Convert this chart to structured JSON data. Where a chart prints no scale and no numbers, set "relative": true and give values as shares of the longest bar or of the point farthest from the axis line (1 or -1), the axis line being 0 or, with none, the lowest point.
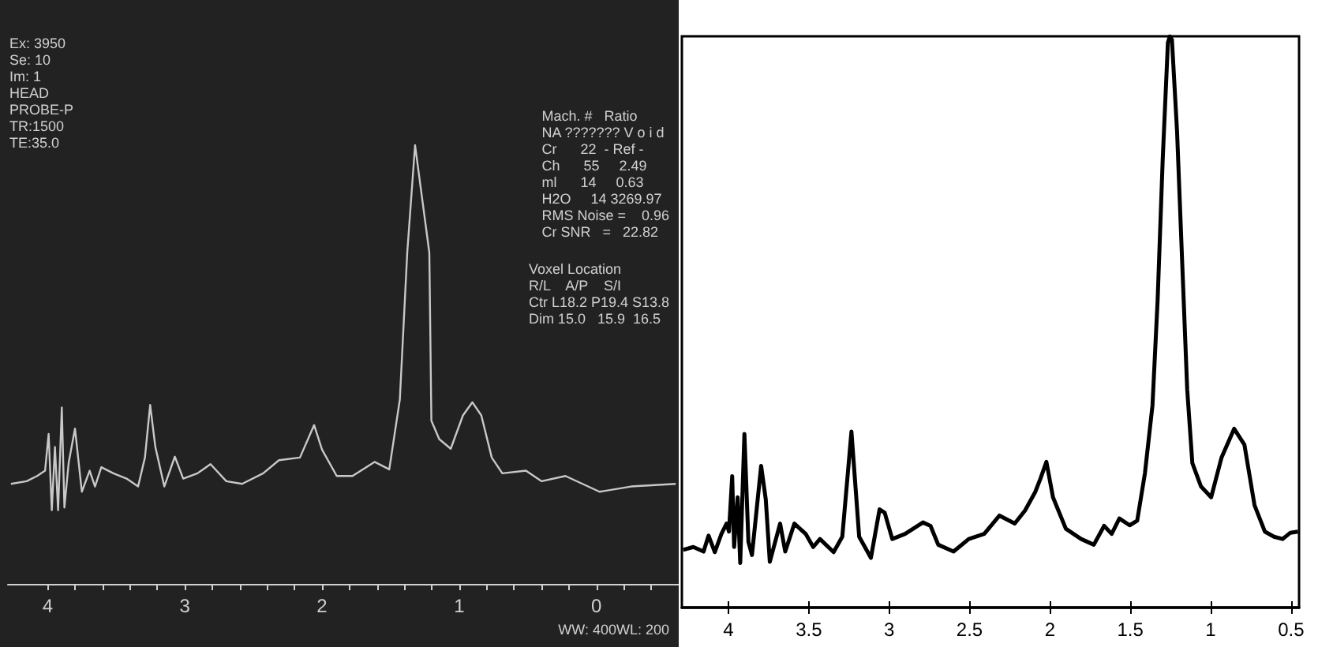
{
  "chart_data": [
    {
      "type": "line",
      "relative": true,
      "xlim": [
        4.29,
        -0.6
      ],
      "xticks": [
        4,
        {
          "value": 3.8,
          "label": null
        },
        {
          "value": 3.6,
          "label": null
        },
        {
          "value": 3.4,
          "label": null
        },
        {
          "value": 3.2,
          "label": null
        },
        3,
        {
          "value": 2.8,
          "label": null
        },
        {
          "value": 2.6,
          "label": null
        },
        {
          "value": 2.4,
          "label": null
        },
        {
          "value": 2.2,
          "label": null
        },
        2,
        {
          "value": 1.8,
          "label": null
        },
        {
          "value": 1.6,
          "label": null
        },
        {
          "value": 1.4,
          "label": null
        },
        {
          "value": 1.2,
          "label": null
        },
        1,
        {
          "value": 0.8,
          "label": null
        },
        {
          "value": 0.6,
          "label": null
        },
        {
          "value": 0.4,
          "label": null
        },
        {
          "value": 0.2,
          "label": null
        },
        0,
        {
          "value": -0.2,
          "label": null
        },
        {
          "value": -0.4,
          "label": null
        }
      ],
      "annotations": [
        "Ex: 3950\nSe: 10\nIm: 1\nHEAD\nPROBE-P\nTR:1500\nTE:35.0",
        "Mach. #   Ratio\nNA ??????? V o i d\nCr      22  - Ref -\nCh      55     2.49\nml      14     0.63\nH2O     14 3269.97\nRMS Noise =    0.96\nCr SNR   =   22.82",
        "Voxel Location\nR/L    A/P    S/I\nCtr L18.2 P19.4 S13.8\nDim 15.0   15.9  16.5",
        "WW: 400WL: 200"
      ],
      "series": [
        {
          "color": "#c8c8c8",
          "x": [
            4.268,
            4.153,
            4.077,
            4.019,
            3.993,
            3.97,
            3.947,
            3.924,
            3.897,
            3.878,
            3.847,
            3.801,
            3.751,
            3.694,
            3.655,
            3.609,
            3.521,
            3.425,
            3.341,
            3.291,
            3.253,
            3.215,
            3.15,
            3.073,
            3.012,
            2.908,
            2.813,
            2.698,
            2.583,
            2.429,
            2.314,
            2.161,
            2.058,
            2.0,
            1.893,
            1.778,
            1.617,
            1.51,
            1.433,
            1.379,
            1.322,
            1.218,
            1.203,
            1.146,
            1.062,
            0.973,
            0.904,
            0.839,
            0.763,
            0.686,
            0.514,
            0.399,
            0.226,
            -0.023,
            -0.253,
            -0.578
          ],
          "values": [
            0.228,
            0.234,
            0.246,
            0.258,
            0.342,
            0.168,
            0.312,
            0.168,
            0.402,
            0.174,
            0.276,
            0.354,
            0.21,
            0.258,
            0.222,
            0.266,
            0.252,
            0.24,
            0.222,
            0.288,
            0.408,
            0.312,
            0.222,
            0.29,
            0.24,
            0.252,
            0.273,
            0.234,
            0.228,
            0.252,
            0.282,
            0.288,
            0.362,
            0.306,
            0.246,
            0.246,
            0.278,
            0.261,
            0.42,
            0.755,
            1.0,
            0.755,
            0.372,
            0.33,
            0.308,
            0.384,
            0.414,
            0.384,
            0.288,
            0.252,
            0.258,
            0.234,
            0.246,
            0.21,
            0.222,
            0.228
          ]
        }
      ]
    },
    {
      "type": "line",
      "relative": true,
      "xlim": [
        4.29,
        0.45
      ],
      "xticks": [
        4,
        3.5,
        3,
        2.5,
        2,
        1.5,
        1,
        0.5
      ],
      "series": [
        {
          "color": "#000000",
          "x": [
            4.282,
            4.219,
            4.155,
            4.124,
            4.085,
            4.044,
            4.012,
            3.997,
            3.977,
            3.965,
            3.943,
            3.927,
            3.901,
            3.876,
            3.854,
            3.797,
            3.768,
            3.743,
            3.679,
            3.647,
            3.59,
            3.52,
            3.473,
            3.431,
            3.346,
            3.292,
            3.235,
            3.187,
            3.114,
            3.06,
            3.028,
            2.981,
            2.901,
            2.79,
            2.743,
            2.695,
            2.6,
            2.505,
            2.409,
            2.314,
            2.219,
            2.155,
            2.092,
            2.06,
            2.022,
            1.981,
            1.901,
            1.806,
            1.727,
            1.663,
            1.616,
            1.568,
            1.504,
            1.457,
            1.409,
            1.362,
            1.33,
            1.298,
            1.266,
            1.254,
            1.241,
            1.209,
            1.177,
            1.146,
            1.114,
            1.06,
            0.997,
            0.933,
            0.854,
            0.79,
            0.727,
            0.663,
            0.606,
            0.552,
            0.504,
            0.457
          ],
          "values": [
            0.101,
            0.106,
            0.098,
            0.126,
            0.097,
            0.129,
            0.147,
            0.133,
            0.23,
            0.106,
            0.193,
            0.078,
            0.304,
            0.115,
            0.092,
            0.248,
            0.189,
            0.08,
            0.147,
            0.098,
            0.147,
            0.129,
            0.106,
            0.12,
            0.097,
            0.124,
            0.308,
            0.124,
            0.087,
            0.172,
            0.166,
            0.12,
            0.129,
            0.149,
            0.143,
            0.11,
            0.098,
            0.12,
            0.129,
            0.161,
            0.147,
            0.17,
            0.202,
            0.225,
            0.255,
            0.193,
            0.138,
            0.12,
            0.11,
            0.143,
            0.129,
            0.156,
            0.144,
            0.152,
            0.235,
            0.354,
            0.538,
            0.787,
            0.989,
            1.0,
            0.994,
            0.833,
            0.603,
            0.382,
            0.253,
            0.212,
            0.193,
            0.262,
            0.313,
            0.285,
            0.179,
            0.133,
            0.124,
            0.12,
            0.131,
            0.133
          ]
        }
      ]
    }
  ]
}
